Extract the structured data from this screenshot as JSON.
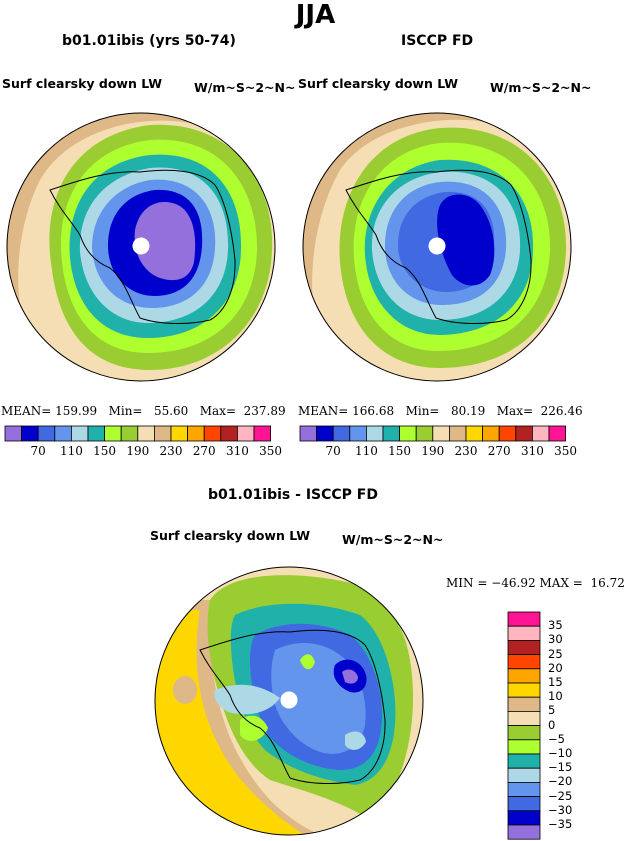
{
  "season": "JJA",
  "panels": [
    {
      "title": "b01.01ibis (yrs 50-74)",
      "var_label": "Surf clearsky down LW",
      "units": "W/m~S~2~N~",
      "stats": {
        "mean_label": "MEAN=",
        "mean": "159.99",
        "min_label": "Min=",
        "min": "55.60",
        "max_label": "Max=",
        "max": "237.89"
      }
    },
    {
      "title": "ISCCP FD",
      "var_label": "Surf clearsky down LW",
      "units": "W/m~S~2~N~",
      "stats": {
        "mean_label": "MEAN=",
        "mean": "166.68",
        "min_label": "Min=",
        "min": "80.19",
        "max_label": "Max=",
        "max": "226.46"
      }
    }
  ],
  "top_colorbar": {
    "colors": [
      "#9370db",
      "#0000cd",
      "#4169e1",
      "#6495ed",
      "#add8e6",
      "#20b2aa",
      "#adff2f",
      "#9acd32",
      "#f5deb3",
      "#deb887",
      "#ffd700",
      "#ffa500",
      "#ff4500",
      "#b22222",
      "#ffb6c1",
      "#ff1493"
    ],
    "labels": [
      "70",
      "110",
      "150",
      "190",
      "230",
      "270",
      "310",
      "350"
    ]
  },
  "diff_panel": {
    "title": "b01.01ibis - ISCCP FD",
    "var_label": "Surf clearsky down LW",
    "units": "W/m~S~2~N~",
    "minmax": {
      "min_label": "MIN =",
      "min": "−46.92",
      "max_label": "MAX =",
      "max": "16.72"
    }
  },
  "diff_colorbar": {
    "colors": [
      "#ff1493",
      "#ffb6c1",
      "#b22222",
      "#ff4500",
      "#ffa500",
      "#ffd700",
      "#deb887",
      "#f5deb3",
      "#9acd32",
      "#adff2f",
      "#20b2aa",
      "#add8e6",
      "#6495ed",
      "#4169e1",
      "#0000cd",
      "#9370db"
    ],
    "labels": [
      "35",
      "30",
      "25",
      "20",
      "15",
      "10",
      "5",
      "0",
      "−5",
      "−10",
      "−15",
      "−20",
      "−25",
      "−30",
      "−35"
    ]
  },
  "chart_data": [
    {
      "type": "heatmap",
      "title": "b01.01ibis (yrs 50-74)",
      "subtitle": "Surf clearsky down LW",
      "units": "W/m~S~2~N~",
      "projection": "south polar stereographic",
      "contour_levels": [
        70,
        90,
        110,
        130,
        150,
        170,
        190,
        210,
        230,
        250,
        270,
        290,
        310,
        330,
        350
      ],
      "stats": {
        "mean": 159.99,
        "min": 55.6,
        "max": 237.89
      }
    },
    {
      "type": "heatmap",
      "title": "ISCCP FD",
      "subtitle": "Surf clearsky down LW",
      "units": "W/m~S~2~N~",
      "projection": "south polar stereographic",
      "contour_levels": [
        70,
        90,
        110,
        130,
        150,
        170,
        190,
        210,
        230,
        250,
        270,
        290,
        310,
        330,
        350
      ],
      "stats": {
        "mean": 166.68,
        "min": 80.19,
        "max": 226.46
      }
    },
    {
      "type": "heatmap",
      "title": "b01.01ibis - ISCCP FD",
      "subtitle": "Surf clearsky down LW",
      "units": "W/m~S~2~N~",
      "projection": "south polar stereographic",
      "contour_levels": [
        -35,
        -30,
        -25,
        -20,
        -15,
        -10,
        -5,
        0,
        5,
        10,
        15,
        20,
        25,
        30,
        35
      ],
      "stats": {
        "min": -46.92,
        "max": 16.72
      }
    }
  ]
}
